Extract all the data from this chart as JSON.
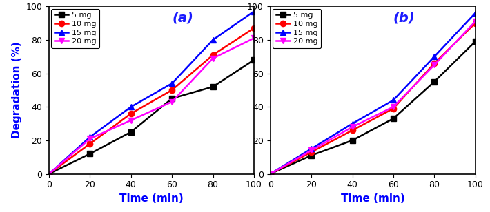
{
  "time": [
    0,
    20,
    40,
    60,
    80,
    100
  ],
  "panel_a": {
    "label": "(a)",
    "series": [
      {
        "label": "5 mg",
        "color": "#000000",
        "marker": "s",
        "values": [
          0,
          12,
          25,
          45,
          52,
          68
        ]
      },
      {
        "label": "10 mg",
        "color": "#ff0000",
        "marker": "o",
        "values": [
          0,
          18,
          36,
          50,
          71,
          87
        ]
      },
      {
        "label": "15 mg",
        "color": "#0000ff",
        "marker": "^",
        "values": [
          0,
          22,
          40,
          54,
          80,
          97
        ]
      },
      {
        "label": "20 mg",
        "color": "#ff00ff",
        "marker": "v",
        "values": [
          0,
          21,
          32,
          43,
          69,
          81
        ]
      }
    ]
  },
  "panel_b": {
    "label": "(b)",
    "series": [
      {
        "label": "5 mg",
        "color": "#000000",
        "marker": "s",
        "values": [
          0,
          11,
          20,
          33,
          55,
          79
        ]
      },
      {
        "label": "10 mg",
        "color": "#ff0000",
        "marker": "o",
        "values": [
          0,
          13,
          26,
          39,
          66,
          90
        ]
      },
      {
        "label": "15 mg",
        "color": "#0000ff",
        "marker": "^",
        "values": [
          0,
          15,
          30,
          44,
          70,
          96
        ]
      },
      {
        "label": "20 mg",
        "color": "#ff00ff",
        "marker": "v",
        "values": [
          0,
          14,
          28,
          40,
          65,
          91
        ]
      }
    ]
  },
  "xlabel": "Time (min)",
  "ylabel": "Degradation (%)",
  "xlim": [
    0,
    100
  ],
  "ylim": [
    0,
    100
  ],
  "xticks": [
    0,
    20,
    40,
    60,
    80,
    100
  ],
  "yticks": [
    0,
    20,
    40,
    60,
    80,
    100
  ],
  "axis_label_color": "#0000ff",
  "axis_label_fontsize": 11,
  "tick_fontsize": 9,
  "legend_fontsize": 8,
  "panel_label_fontsize": 14,
  "linewidth": 1.8,
  "markersize": 6
}
